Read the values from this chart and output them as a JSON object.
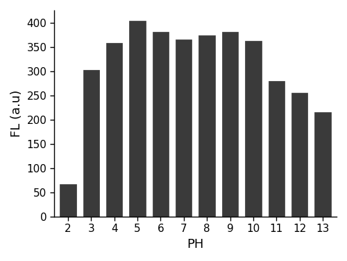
{
  "categories": [
    2,
    3,
    4,
    5,
    6,
    7,
    8,
    9,
    10,
    11,
    12,
    13
  ],
  "values": [
    67,
    302,
    358,
    403,
    381,
    365,
    373,
    381,
    362,
    280,
    255,
    215
  ],
  "bar_color": "#3a3a3a",
  "bar_edge_color": "#3a3a3a",
  "title": "",
  "xlabel": "PH",
  "ylabel": "FL (a.u)",
  "ylim": [
    0,
    425
  ],
  "xlim": [
    1.4,
    13.6
  ],
  "yticks": [
    0,
    50,
    100,
    150,
    200,
    250,
    300,
    350,
    400
  ],
  "xlabel_fontsize": 13,
  "ylabel_fontsize": 13,
  "tick_fontsize": 11,
  "bar_width": 0.7,
  "background_color": "#ffffff",
  "spine_color": "#000000",
  "figure_bg": "#ffffff"
}
